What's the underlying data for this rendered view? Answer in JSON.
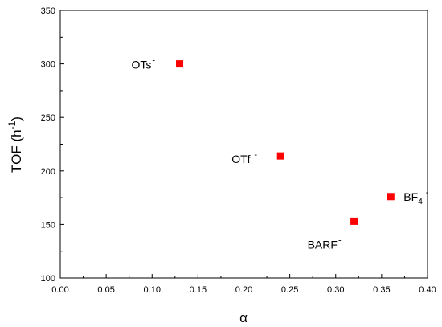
{
  "chart_data": {
    "type": "scatter",
    "xlabel": "α",
    "ylabel": {
      "base": "TOF (h",
      "superscript": "-1",
      "suffix": ")"
    },
    "xlim": [
      0.0,
      0.4
    ],
    "ylim": [
      100,
      350
    ],
    "x_ticks": [
      "0.00",
      "0.05",
      "0.10",
      "0.15",
      "0.20",
      "0.25",
      "0.30",
      "0.35",
      "0.40"
    ],
    "y_ticks": [
      "100",
      "150",
      "200",
      "250",
      "300",
      "350"
    ],
    "marker_color": "#ff0000",
    "grid": false,
    "points": [
      {
        "x": 0.13,
        "y": 300,
        "label": {
          "base": "OTs",
          "subscript": "",
          "superscript": "-"
        }
      },
      {
        "x": 0.24,
        "y": 214,
        "label": {
          "base": "OTf ",
          "subscript": "",
          "superscript": "-"
        }
      },
      {
        "x": 0.36,
        "y": 176,
        "label": {
          "base": "BF",
          "subscript": "4",
          "superscript": "-"
        }
      },
      {
        "x": 0.32,
        "y": 153,
        "label": {
          "base": "BARF",
          "subscript": "",
          "superscript": "-"
        }
      }
    ]
  }
}
